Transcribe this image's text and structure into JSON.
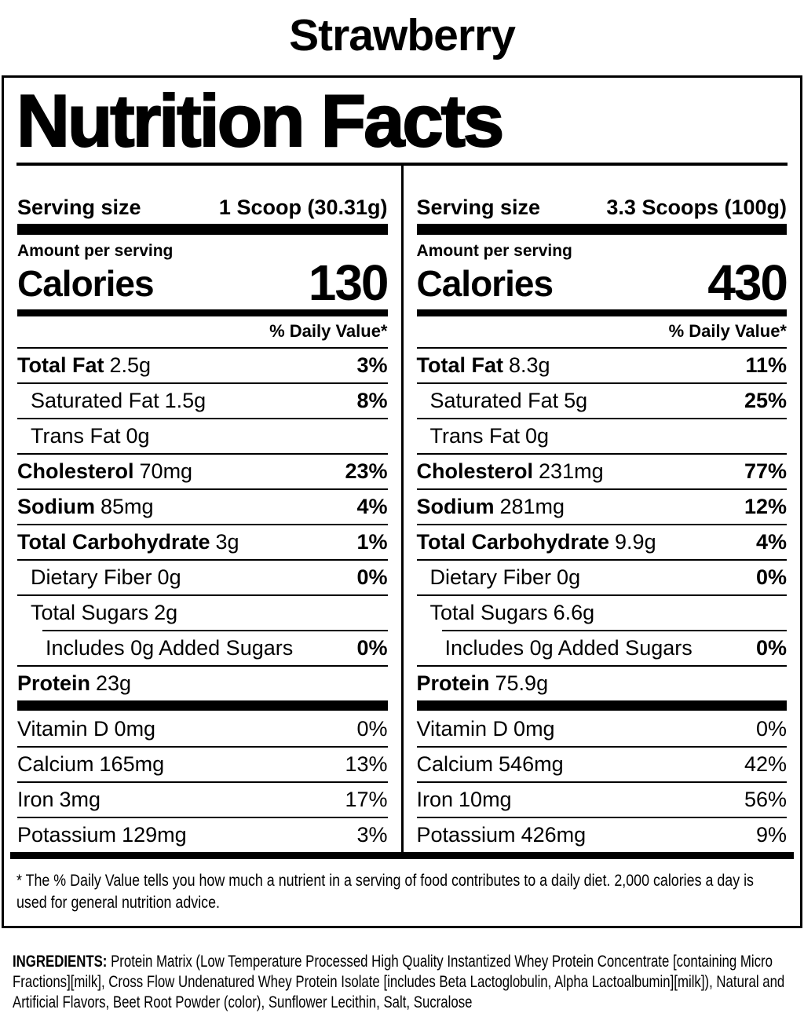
{
  "flavor_title": "Strawberry",
  "label_title": "Nutrition Facts",
  "labels": {
    "serving_size": "Serving size",
    "amount_per_serving": "Amount per serving",
    "calories": "Calories",
    "daily_value": "% Daily Value*"
  },
  "columns": [
    {
      "serving_size_value": "1 Scoop (30.31g)",
      "calories_value": "130",
      "nutrients": [
        {
          "name": "Total Fat",
          "amount": "2.5g",
          "dv": "3%"
        },
        {
          "name": "Saturated Fat",
          "amount": "1.5g",
          "dv": "8%"
        },
        {
          "name": "Trans Fat",
          "amount": "0g",
          "dv": ""
        },
        {
          "name": "Cholesterol",
          "amount": "70mg",
          "dv": "23%"
        },
        {
          "name": "Sodium",
          "amount": "85mg",
          "dv": "4%"
        },
        {
          "name": "Total Carbohydrate",
          "amount": "3g",
          "dv": "1%"
        },
        {
          "name": "Dietary Fiber",
          "amount": "0g",
          "dv": "0%"
        },
        {
          "name": "Total Sugars",
          "amount": "2g",
          "dv": ""
        },
        {
          "name": "Includes 0g Added Sugars",
          "amount": "",
          "dv": "0%"
        },
        {
          "name": "Protein",
          "amount": "23g",
          "dv": ""
        }
      ],
      "vitamins": [
        {
          "name": "Vitamin D",
          "amount": "0mg",
          "dv": "0%"
        },
        {
          "name": "Calcium",
          "amount": "165mg",
          "dv": "13%"
        },
        {
          "name": "Iron",
          "amount": "3mg",
          "dv": "17%"
        },
        {
          "name": "Potassium",
          "amount": "129mg",
          "dv": "3%"
        }
      ]
    },
    {
      "serving_size_value": "3.3 Scoops (100g)",
      "calories_value": "430",
      "nutrients": [
        {
          "name": "Total Fat",
          "amount": "8.3g",
          "dv": "11%"
        },
        {
          "name": "Saturated Fat",
          "amount": "5g",
          "dv": "25%"
        },
        {
          "name": "Trans Fat",
          "amount": "0g",
          "dv": ""
        },
        {
          "name": "Cholesterol",
          "amount": "231mg",
          "dv": "77%"
        },
        {
          "name": "Sodium",
          "amount": "281mg",
          "dv": "12%"
        },
        {
          "name": "Total Carbohydrate",
          "amount": "9.9g",
          "dv": "4%"
        },
        {
          "name": "Dietary Fiber",
          "amount": "0g",
          "dv": "0%"
        },
        {
          "name": "Total Sugars",
          "amount": "6.6g",
          "dv": ""
        },
        {
          "name": "Includes 0g Added Sugars",
          "amount": "",
          "dv": "0%"
        },
        {
          "name": "Protein",
          "amount": "75.9g",
          "dv": ""
        }
      ],
      "vitamins": [
        {
          "name": "Vitamin D",
          "amount": "0mg",
          "dv": "0%"
        },
        {
          "name": "Calcium",
          "amount": "546mg",
          "dv": "42%"
        },
        {
          "name": "Iron",
          "amount": "10mg",
          "dv": "56%"
        },
        {
          "name": "Potassium",
          "amount": "426mg",
          "dv": "9%"
        }
      ]
    }
  ],
  "footnote": "* The % Daily Value tells you how much a nutrient in a serving of food contributes to a daily diet. 2,000 calories a day is used for general nutrition advice.",
  "ingredients": {
    "label": "INGREDIENTS:",
    "text": "Protein Matrix (Low Temperature Processed High Quality Instantized Whey Protein Concentrate [containing Micro Fractions][milk], Cross Flow Undenatured Whey Protein Isolate [includes Beta Lactoglobulin, Alpha Lactoalbumin][milk]), Natural and Artificial Flavors, Beet Root Powder (color), Sunflower Lecithin, Salt, Sucralose"
  }
}
